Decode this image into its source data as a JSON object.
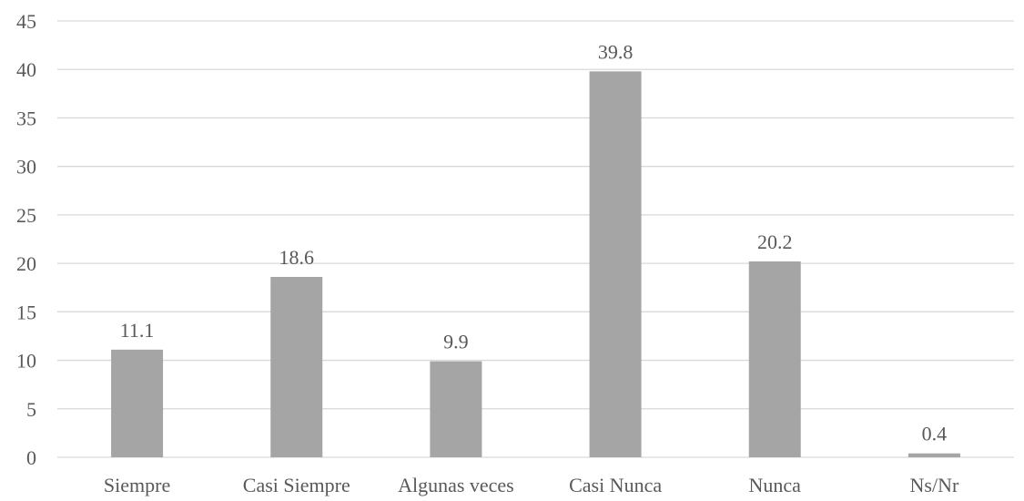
{
  "chart_data": {
    "type": "bar",
    "title": "",
    "xlabel": "",
    "ylabel": "",
    "categories": [
      "Siempre",
      "Casi Siempre",
      "Algunas veces",
      "Casi Nunca",
      "Nunca",
      "Ns/Nr"
    ],
    "values": [
      11.1,
      18.6,
      9.9,
      39.8,
      20.2,
      0.4
    ],
    "value_labels": [
      "11.1",
      "18.6",
      "9.9",
      "39.8",
      "20.2",
      "0.4"
    ],
    "ylim": [
      0,
      45
    ],
    "yticks": [
      0,
      5,
      10,
      15,
      20,
      25,
      30,
      35,
      40,
      45
    ],
    "ytick_labels": [
      "0",
      "5",
      "10",
      "15",
      "20",
      "25",
      "30",
      "35",
      "40",
      "45"
    ],
    "grid": true,
    "legend": "none",
    "bar_color": "#a5a5a5"
  }
}
